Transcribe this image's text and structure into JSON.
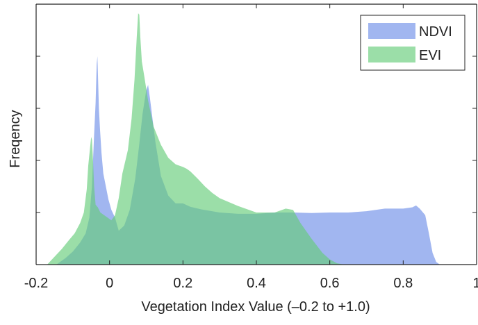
{
  "chart_data": {
    "type": "area",
    "title": "",
    "xlabel": "Vegetation Index Value (–0.2 to +1.0)",
    "ylabel": "Freqency",
    "xlim": [
      -0.2,
      1.0
    ],
    "ylim": [
      0,
      1.0
    ],
    "xticks": [
      -0.2,
      0,
      0.2,
      0.4,
      0.6,
      0.8,
      1.0
    ],
    "xtick_labels": [
      "-0.2",
      "0",
      "0.2",
      "0.4",
      "0.6",
      "0.8",
      "1"
    ],
    "yticks": [
      0.2,
      0.4,
      0.6,
      0.8
    ],
    "ytick_labels": [
      "",
      "",
      "",
      ""
    ],
    "grid": false,
    "legend_position": "top-right",
    "colors": {
      "NDVI": "#6f8fe8",
      "EVI": "#66cc7a",
      "axis": "#222222"
    },
    "series": [
      {
        "name": "NDVI",
        "x": [
          -0.145,
          -0.12,
          -0.1,
          -0.08,
          -0.065,
          -0.055,
          -0.048,
          -0.042,
          -0.038,
          -0.035,
          -0.033,
          -0.031,
          -0.029,
          -0.026,
          -0.022,
          -0.017,
          -0.01,
          -0.003,
          0.005,
          0.015,
          0.025,
          0.04,
          0.055,
          0.07,
          0.08,
          0.09,
          0.1,
          0.105,
          0.11,
          0.125,
          0.14,
          0.16,
          0.18,
          0.2,
          0.22,
          0.25,
          0.3,
          0.35,
          0.4,
          0.45,
          0.5,
          0.55,
          0.6,
          0.65,
          0.7,
          0.75,
          0.8,
          0.825,
          0.835,
          0.845,
          0.86,
          0.87,
          0.88,
          0.89,
          0.9
        ],
        "y": [
          0.0,
          0.025,
          0.05,
          0.085,
          0.12,
          0.18,
          0.3,
          0.5,
          0.62,
          0.77,
          0.8,
          0.7,
          0.6,
          0.52,
          0.43,
          0.35,
          0.3,
          0.25,
          0.21,
          0.18,
          0.13,
          0.15,
          0.21,
          0.33,
          0.45,
          0.58,
          0.67,
          0.69,
          0.64,
          0.47,
          0.34,
          0.265,
          0.235,
          0.235,
          0.222,
          0.212,
          0.2,
          0.195,
          0.195,
          0.2,
          0.2,
          0.198,
          0.2,
          0.2,
          0.205,
          0.215,
          0.215,
          0.22,
          0.227,
          0.215,
          0.19,
          0.12,
          0.045,
          0.01,
          0.0
        ]
      },
      {
        "name": "EVI",
        "x": [
          -0.17,
          -0.15,
          -0.13,
          -0.11,
          -0.095,
          -0.08,
          -0.07,
          -0.062,
          -0.058,
          -0.053,
          -0.05,
          -0.048,
          -0.045,
          -0.042,
          -0.038,
          -0.032,
          -0.025,
          -0.015,
          -0.005,
          0.005,
          0.015,
          0.025,
          0.035,
          0.04,
          0.05,
          0.06,
          0.068,
          0.074,
          0.078,
          0.081,
          0.084,
          0.088,
          0.095,
          0.105,
          0.12,
          0.14,
          0.16,
          0.18,
          0.2,
          0.21,
          0.22,
          0.24,
          0.26,
          0.28,
          0.3,
          0.35,
          0.4,
          0.45,
          0.48,
          0.5,
          0.52,
          0.55,
          0.58,
          0.6,
          0.62,
          0.64
        ],
        "y": [
          0.0,
          0.03,
          0.06,
          0.095,
          0.12,
          0.16,
          0.2,
          0.29,
          0.38,
          0.45,
          0.49,
          0.48,
          0.4,
          0.3,
          0.23,
          0.22,
          0.2,
          0.19,
          0.18,
          0.17,
          0.19,
          0.255,
          0.35,
          0.38,
          0.44,
          0.56,
          0.71,
          0.87,
          0.965,
          0.96,
          0.87,
          0.78,
          0.72,
          0.63,
          0.53,
          0.46,
          0.41,
          0.385,
          0.375,
          0.368,
          0.358,
          0.33,
          0.3,
          0.275,
          0.255,
          0.225,
          0.2,
          0.2,
          0.215,
          0.21,
          0.16,
          0.1,
          0.045,
          0.02,
          0.005,
          0.0
        ]
      }
    ]
  }
}
